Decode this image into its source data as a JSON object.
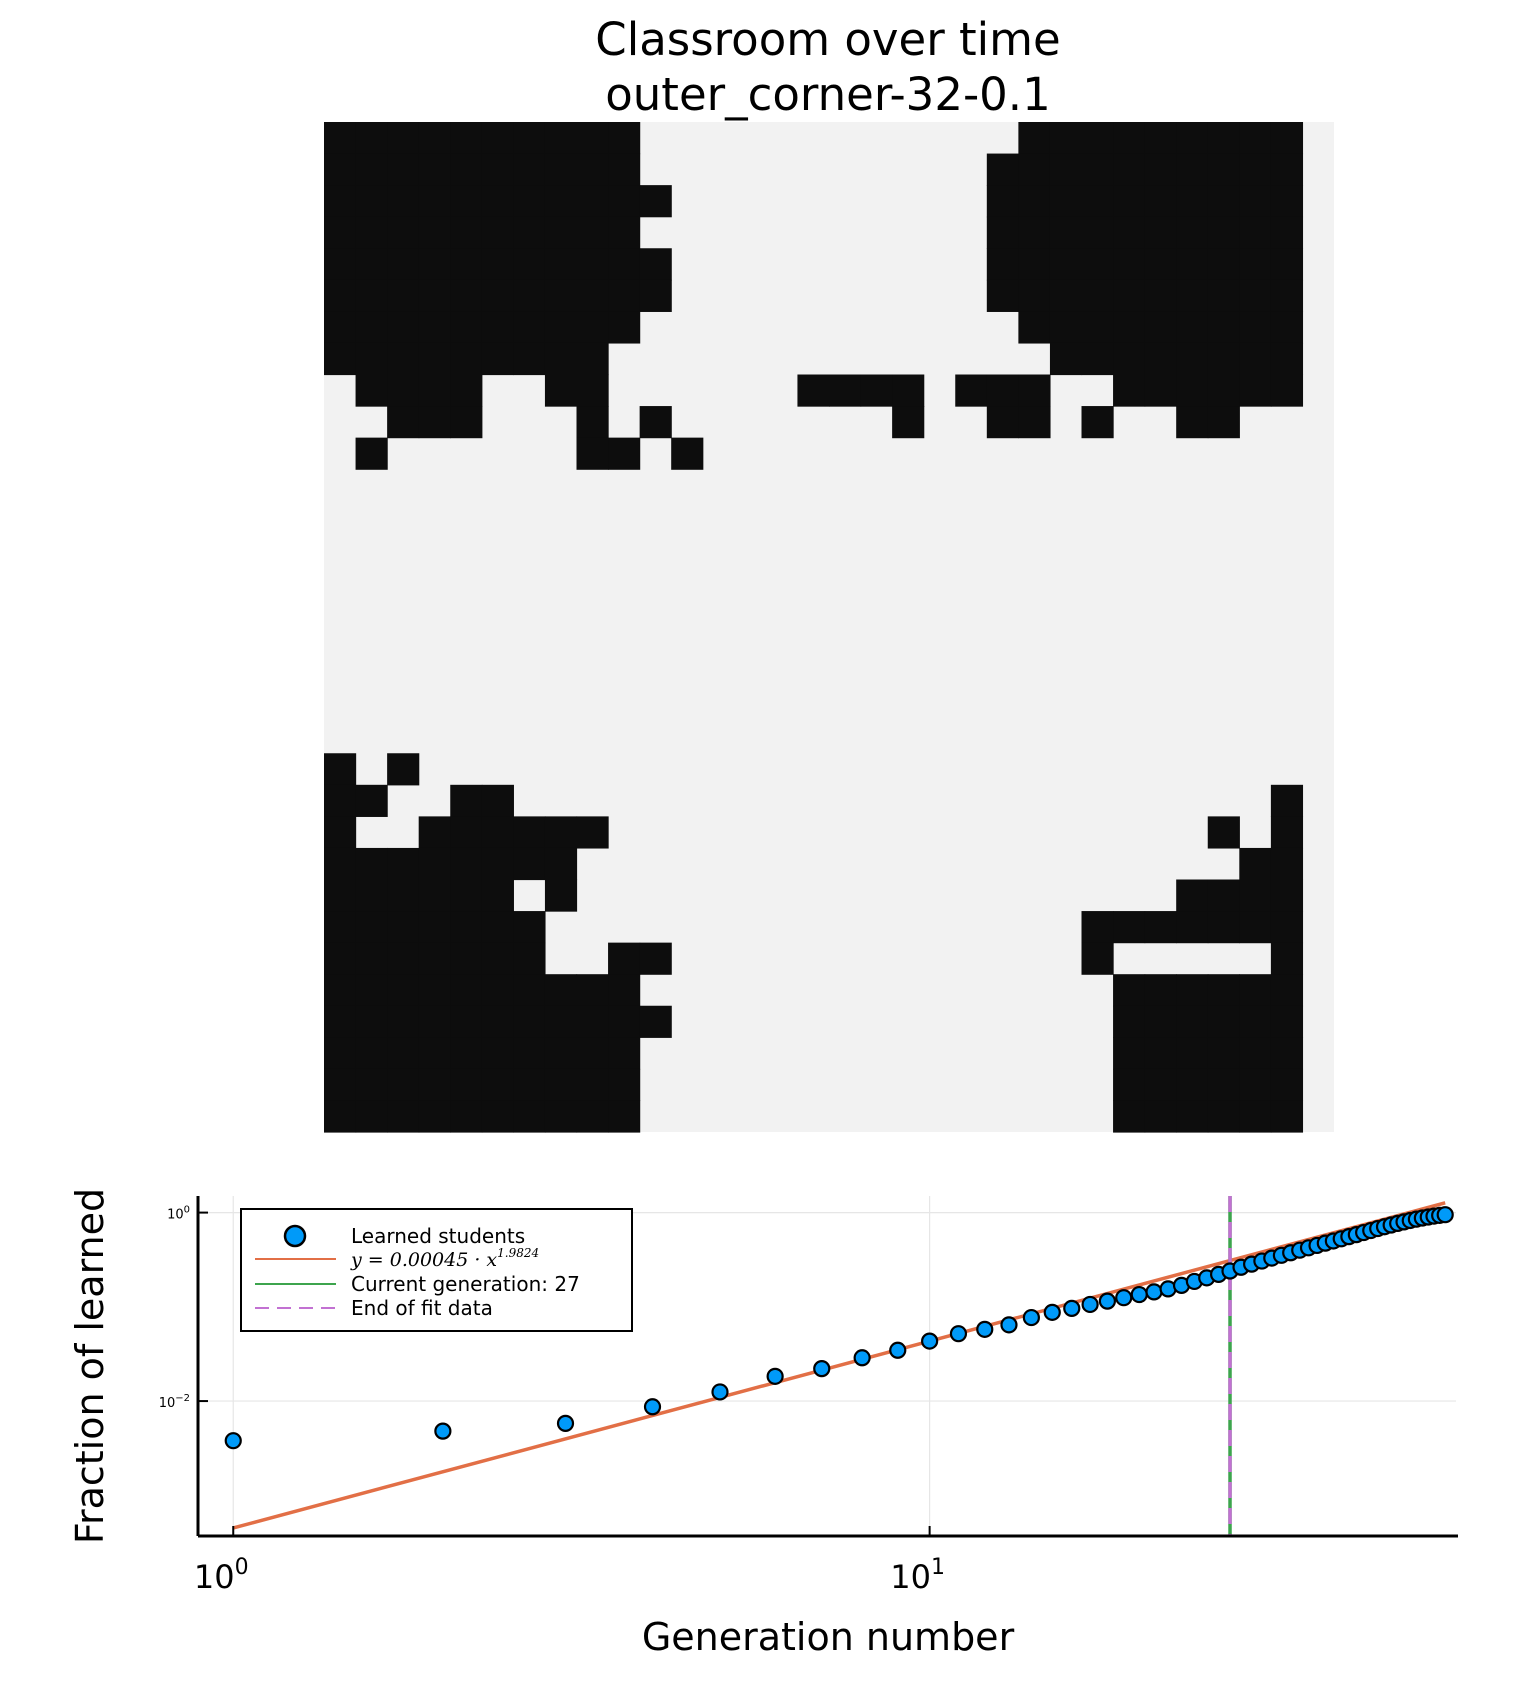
{
  "title": {
    "line1": "Classroom over time",
    "line2": "outer_corner-32-0.1"
  },
  "colors": {
    "learned_cell": "#0d0d0d",
    "unlearned_cell": "#f2f2f2",
    "scatter": "#009af9",
    "fit": "#e26f46",
    "current": "#3da44d",
    "end_fit": "#c271d2"
  },
  "grid_map": {
    "rows": [
      "##########............#########",
      "##########...........##########",
      "###########..........##########",
      "##########...........##########",
      "###########..........##########",
      "###########..........##########",
      "##########............#########",
      "#########..............########",
      ".####..##......####.###..######",
      "..###...#.#.......#..##.#..##..",
      ".#......##.#...................",
      "...............................",
      "...............................",
      "...............................",
      "...............................",
      "...............................",
      "...............................",
      "...............................",
      "...............................",
      "...............................",
      "#.#............................",
      "##..##........................#",
      "#..######...................#.#",
      "########.....................##",
      "######.#...................####",
      "#######.................#######",
      "#######..##.............#.....#",
      "##########...............######",
      "###########..............######",
      "##########...............######",
      "##########...............######",
      "##########...............######"
    ]
  },
  "chart_data": {
    "type": "scatter",
    "xlabel": "Generation number",
    "ylabel": "Fraction of learned",
    "xscale": "log",
    "yscale": "log",
    "x_ticks": [
      {
        "base": "10",
        "exp": "0"
      },
      {
        "base": "10",
        "exp": "1"
      }
    ],
    "y_ticks": [
      {
        "base": "10",
        "exp": "0"
      },
      {
        "base": "10",
        "exp": "−2"
      }
    ],
    "xlim": [
      0.89,
      57
    ],
    "ylim": [
      0.00037,
      1.5
    ],
    "grid": true,
    "legend_position": "top-left",
    "series": [
      {
        "name": "Learned students",
        "kind": "scatter",
        "x": [
          1,
          2,
          3,
          4,
          5,
          6,
          7,
          8,
          9,
          10,
          11,
          12,
          13,
          14,
          15,
          16,
          17,
          18,
          19,
          20,
          21,
          22,
          23,
          24,
          25,
          26,
          27,
          28,
          29,
          30,
          31,
          32,
          33,
          34,
          35,
          36,
          37,
          38,
          39,
          40,
          41,
          42,
          43,
          44,
          45,
          46,
          47,
          48,
          49,
          50,
          51,
          52,
          53,
          54,
          55
        ],
        "y": [
          0.0038,
          0.0048,
          0.0058,
          0.0087,
          0.0125,
          0.0183,
          0.0221,
          0.0288,
          0.0346,
          0.0433,
          0.0519,
          0.0577,
          0.0644,
          0.0769,
          0.0874,
          0.0963,
          0.106,
          0.115,
          0.125,
          0.135,
          0.144,
          0.155,
          0.169,
          0.186,
          0.203,
          0.221,
          0.24,
          0.263,
          0.284,
          0.306,
          0.329,
          0.352,
          0.375,
          0.399,
          0.423,
          0.448,
          0.474,
          0.5,
          0.527,
          0.556,
          0.584,
          0.614,
          0.645,
          0.677,
          0.708,
          0.738,
          0.768,
          0.797,
          0.825,
          0.852,
          0.876,
          0.898,
          0.918,
          0.935,
          0.95
        ]
      },
      {
        "name": "y = 0.00045 · x^1.9824",
        "kind": "fit",
        "coefficient": 0.00045,
        "exponent": 1.9824
      }
    ],
    "vlines": [
      {
        "name": "Current generation: 27",
        "x": 27,
        "style": "solid"
      },
      {
        "name": "End of fit data",
        "x": 27,
        "style": "dashed"
      }
    ],
    "legend": {
      "scatter_label": "Learned students",
      "fit_label_prefix": "y = 0.00045 · x",
      "fit_label_exp": "1.9824",
      "current_label": "Current generation: 27",
      "end_label": "End of fit data"
    }
  }
}
